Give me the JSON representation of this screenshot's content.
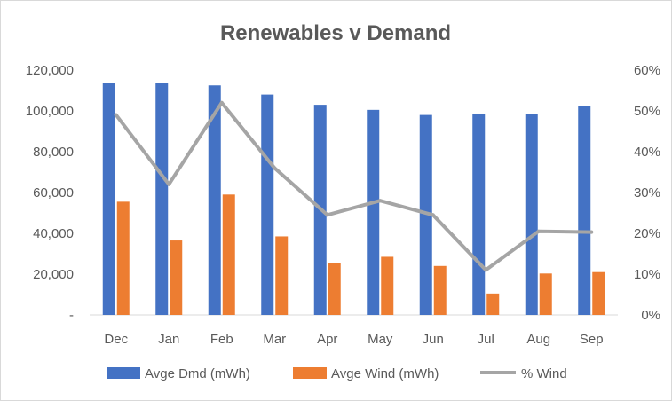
{
  "chart_data": {
    "type": "bar",
    "title": "Renewables v Demand",
    "categories": [
      "Dec",
      "Jan",
      "Feb",
      "Mar",
      "Apr",
      "May",
      "Jun",
      "Jul",
      "Aug",
      "Sep"
    ],
    "series": [
      {
        "name": "Avge Dmd (mWh)",
        "type": "bar",
        "axis": "left",
        "color": "#4472c4",
        "values": [
          113500,
          113500,
          112500,
          108000,
          103000,
          100500,
          98000,
          98700,
          98300,
          102500
        ]
      },
      {
        "name": "Avge Wind (mWh)",
        "type": "bar",
        "axis": "left",
        "color": "#ed7d31",
        "values": [
          55500,
          36500,
          59000,
          38500,
          25500,
          28500,
          24000,
          10500,
          20300,
          21000
        ]
      },
      {
        "name": "% Wind",
        "type": "line",
        "axis": "right",
        "color": "#a5a5a5",
        "values": [
          0.49,
          0.32,
          0.52,
          0.36,
          0.245,
          0.28,
          0.245,
          0.11,
          0.205,
          0.203
        ]
      }
    ],
    "y_left": {
      "min": 0,
      "max": 120000,
      "ticks": [
        "-",
        "20,000",
        "40,000",
        "60,000",
        "80,000",
        "100,000",
        "120,000"
      ]
    },
    "y_right": {
      "min": 0,
      "max": 0.6,
      "ticks": [
        "0%",
        "10%",
        "20%",
        "30%",
        "40%",
        "50%",
        "60%"
      ]
    },
    "grid": false,
    "legend": "bottom"
  }
}
